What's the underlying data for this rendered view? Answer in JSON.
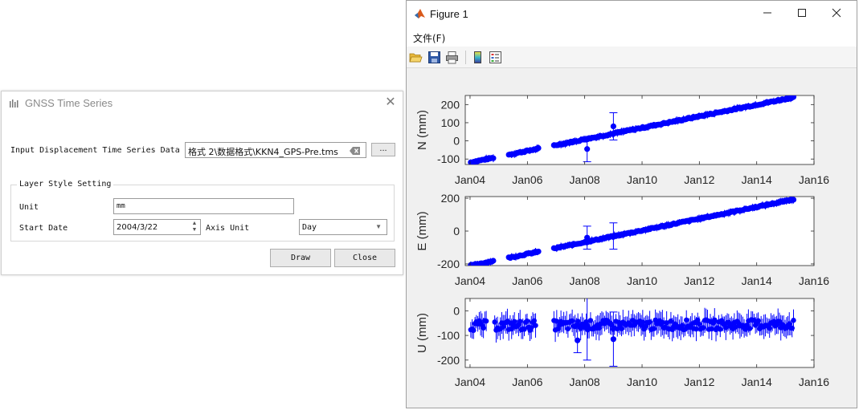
{
  "dialog": {
    "title": "GNSS Time Series",
    "input_label": "Input Displacement Time Series Data",
    "file_path": "格式 2\\数据格式\\KKN4_GPS-Pre.tms",
    "browse_label": "...",
    "group_title": "Layer Style Setting",
    "unit_label": "Unit",
    "unit_value": "mm",
    "start_date_label": "Start Date",
    "start_date_value": "2004/3/22",
    "axis_unit_label": "Axis Unit",
    "axis_unit_value": "Day",
    "draw_label": "Draw",
    "close_label": "Close",
    "icons": [
      "chart-app-icon",
      "close-icon",
      "clear-icon",
      "spin-up-icon",
      "spin-down-icon",
      "dropdown-arrow-icon"
    ]
  },
  "figure": {
    "title": "Figure 1",
    "menu_file": "文件(F)",
    "toolbar_icons": [
      "open-folder-icon",
      "save-icon",
      "print-icon",
      "colorbar-icon",
      "legend-icon"
    ],
    "window_controls": [
      "minimize-icon",
      "maximize-icon",
      "close-icon"
    ],
    "marker_color": "#0000ff"
  },
  "chart_data": [
    {
      "type": "scatter",
      "ylabel": "N (mm)",
      "x_ticks": [
        "Jan04",
        "Jan06",
        "Jan08",
        "Jan10",
        "Jan12",
        "Jan14",
        "Jan16"
      ],
      "y_ticks": [
        "200",
        "100",
        "0",
        "-100"
      ],
      "xlim": [
        "2003-11-01",
        "2016-01-01"
      ],
      "ylim": [
        -130,
        250
      ],
      "trend": {
        "start": [
          "2004-01-10",
          -118
        ],
        "end": [
          "2015-04-15",
          240
        ]
      },
      "gaps": [
        [
          "2004-11-01",
          "2005-05-01"
        ],
        [
          "2006-06-01",
          "2006-12-01"
        ]
      ],
      "outliers": [
        {
          "x": "2008-02-01",
          "y": -45,
          "err": 70
        },
        {
          "x": "2009-01-01",
          "y": 80,
          "err": 75
        }
      ]
    },
    {
      "type": "scatter",
      "ylabel": "E (mm)",
      "x_ticks": [
        "Jan04",
        "Jan06",
        "Jan08",
        "Jan10",
        "Jan12",
        "Jan14",
        "Jan16"
      ],
      "y_ticks": [
        "200",
        "0",
        "-200"
      ],
      "xlim": [
        "2003-11-01",
        "2016-01-01"
      ],
      "ylim": [
        -210,
        210
      ],
      "trend": {
        "start": [
          "2004-01-10",
          -210
        ],
        "end": [
          "2015-04-15",
          193
        ]
      },
      "gaps": [
        [
          "2004-11-01",
          "2005-05-01"
        ],
        [
          "2006-06-01",
          "2006-12-01"
        ]
      ],
      "outliers": [
        {
          "x": "2008-02-01",
          "y": -40,
          "err": 70
        },
        {
          "x": "2009-01-01",
          "y": -30,
          "err": 80
        }
      ]
    },
    {
      "type": "scatter",
      "ylabel": "U (mm)",
      "x_ticks": [
        "Jan04",
        "Jan06",
        "Jan08",
        "Jan10",
        "Jan12",
        "Jan14",
        "Jan16"
      ],
      "y_ticks": [
        "0",
        "-100",
        "-200"
      ],
      "xlim": [
        "2003-11-01",
        "2016-01-01"
      ],
      "ylim": [
        -230,
        50
      ],
      "trend": {
        "start": [
          "2004-01-10",
          -60
        ],
        "end": [
          "2015-04-15",
          -55
        ]
      },
      "gaps": [
        [
          "2004-08-01",
          "2004-11-01"
        ],
        [
          "2006-05-01",
          "2006-12-01"
        ]
      ],
      "outliers": [
        {
          "x": "2007-10-01",
          "y": -120,
          "err": 50
        },
        {
          "x": "2008-02-01",
          "y": -60,
          "err": 140
        },
        {
          "x": "2009-01-01",
          "y": -115,
          "err": 110
        }
      ]
    }
  ]
}
